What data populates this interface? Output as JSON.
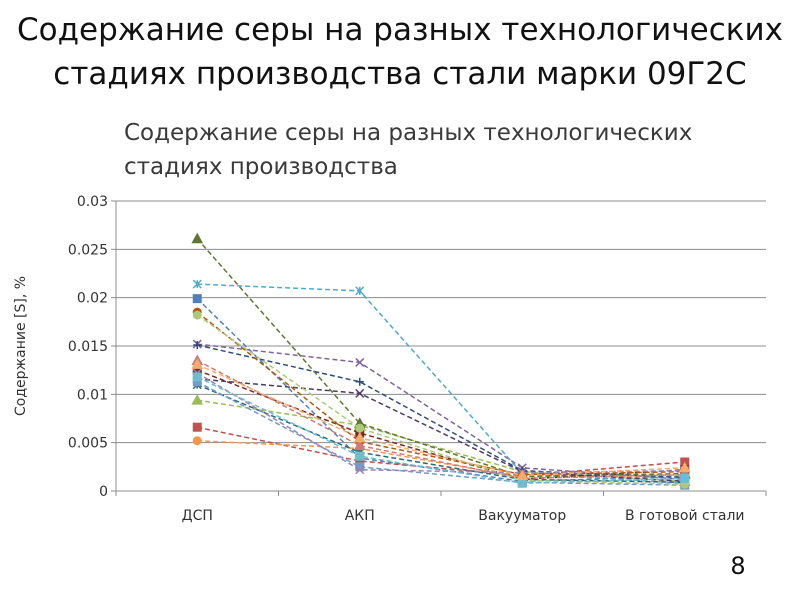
{
  "slide": {
    "title_line1": "Содержание серы на разных технологических",
    "title_line2": "стадиях производства стали марки 09Г2С",
    "page_number": "8"
  },
  "chart_data": {
    "type": "line",
    "title_line1": "Содержание серы на разных технологических",
    "title_line2": "стадиях производства",
    "xlabel": "",
    "ylabel": "Содержание [S], %",
    "categories": [
      "ДСП",
      "АКП",
      "Вакууматор",
      "В готовой стали"
    ],
    "ylim": [
      0,
      0.03
    ],
    "yticks": [
      0,
      0.005,
      0.01,
      0.015,
      0.02,
      0.025,
      0.03
    ],
    "ytick_labels": [
      "0",
      "0.005",
      "0.01",
      "0.015",
      "0.02",
      "0.025",
      "0.03"
    ],
    "grid": true,
    "legend": "none",
    "line_style": "dashed",
    "series": [
      {
        "color": "#4f81bd",
        "marker": "square",
        "values": [
          0.0199,
          0.0034,
          0.001,
          0.0015
        ]
      },
      {
        "color": "#c0504d",
        "marker": "square",
        "values": [
          0.0066,
          0.0031,
          0.0016,
          0.003
        ]
      },
      {
        "color": "#9bbb59",
        "marker": "triangle",
        "values": [
          0.0094,
          0.0068,
          0.002,
          0.001
        ]
      },
      {
        "color": "#8064a2",
        "marker": "x",
        "values": [
          0.0152,
          0.0133,
          0.0024,
          0.0012
        ]
      },
      {
        "color": "#4bacc6",
        "marker": "star",
        "values": [
          0.0214,
          0.0207,
          0.0018,
          0.0008
        ]
      },
      {
        "color": "#f79646",
        "marker": "circle",
        "values": [
          0.0052,
          0.0044,
          0.0014,
          0.0016
        ]
      },
      {
        "color": "#2c4d75",
        "marker": "plus",
        "values": [
          0.0151,
          0.0113,
          0.0021,
          0.0014
        ]
      },
      {
        "color": "#772c2a",
        "marker": "square",
        "values": [
          0.0125,
          0.006,
          0.0012,
          0.0022
        ]
      },
      {
        "color": "#5f7530",
        "marker": "triangle",
        "values": [
          0.0261,
          0.007,
          0.0015,
          0.0018
        ]
      },
      {
        "color": "#4d3b62",
        "marker": "x",
        "values": [
          0.0116,
          0.0101,
          0.002,
          0.001
        ]
      },
      {
        "color": "#276a7c",
        "marker": "star",
        "values": [
          0.011,
          0.004,
          0.0012,
          0.0009
        ]
      },
      {
        "color": "#b65708",
        "marker": "circle",
        "values": [
          0.0185,
          0.0051,
          0.0017,
          0.002
        ]
      },
      {
        "color": "#729aca",
        "marker": "square",
        "values": [
          0.0113,
          0.0025,
          0.0009,
          0.0006
        ]
      },
      {
        "color": "#cd7b79",
        "marker": "triangle",
        "values": [
          0.0135,
          0.0047,
          0.0013,
          0.0017
        ]
      },
      {
        "color": "#afc97a",
        "marker": "circle",
        "values": [
          0.0182,
          0.0065,
          0.0011,
          0.0007
        ]
      },
      {
        "color": "#9983b5",
        "marker": "x",
        "values": [
          0.0122,
          0.0022,
          0.0019,
          0.0021
        ]
      },
      {
        "color": "#6fbdd1",
        "marker": "square",
        "values": [
          0.0118,
          0.0036,
          0.0008,
          0.0013
        ]
      },
      {
        "color": "#f9ab6b",
        "marker": "triangle",
        "values": [
          0.0131,
          0.0055,
          0.0016,
          0.0024
        ]
      }
    ]
  }
}
